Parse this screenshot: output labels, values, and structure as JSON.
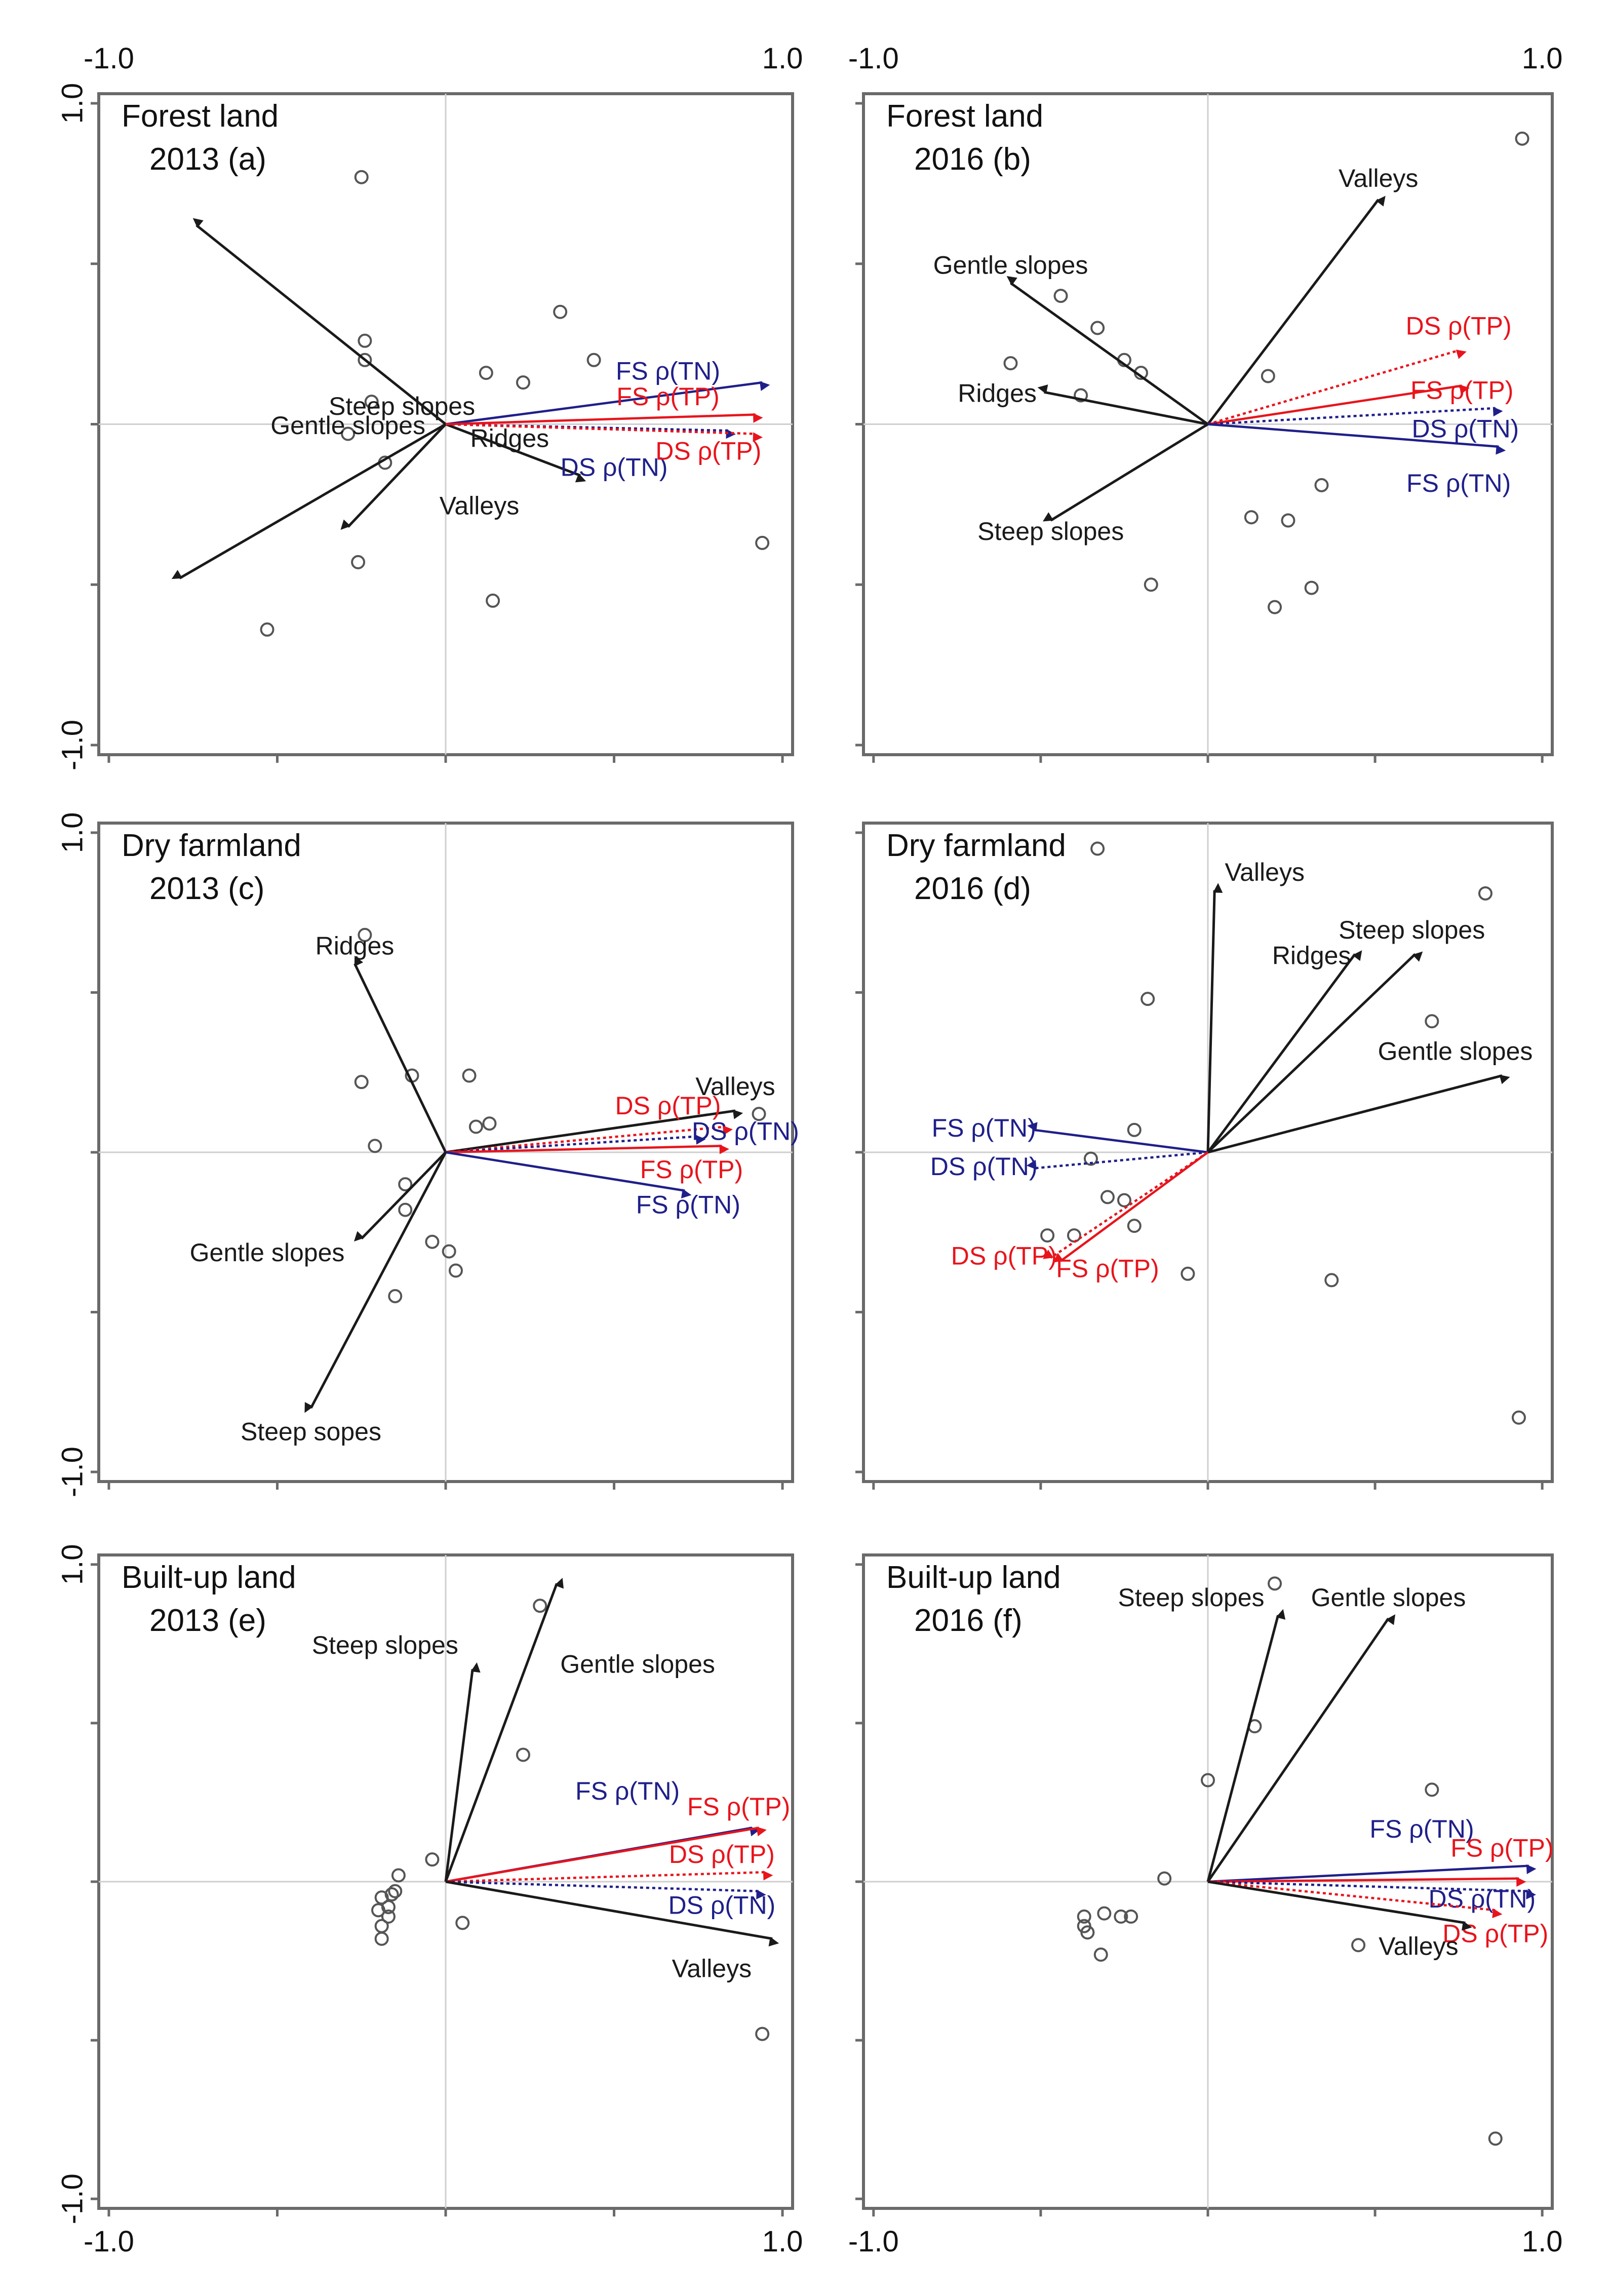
{
  "colors": {
    "env": "#1a1a1a",
    "tn": "#1f1f8a",
    "tp": "#e8141c",
    "point": "#555555"
  },
  "chart_data": [
    {
      "type": "scatter",
      "title": "Forest land",
      "subtitle": "2013 (a)",
      "xlim": [
        -1.0,
        1.0
      ],
      "ylim": [
        -1.0,
        1.0
      ],
      "x_tick_labels": [
        "-1.0",
        "1.0"
      ],
      "y_tick_labels": [
        "1.0",
        "-1.0"
      ],
      "vectors": [
        {
          "label": "Steep slopes",
          "x": -0.74,
          "y": 0.62,
          "kind": "env",
          "style": "solid"
        },
        {
          "label": "Gentle slopes",
          "x": -0.79,
          "y": -0.48,
          "kind": "env",
          "style": "solid"
        },
        {
          "label": "Ridges",
          "x": -0.29,
          "y": -0.32,
          "kind": "env",
          "style": "solid"
        },
        {
          "label": "Valleys",
          "x": 0.4,
          "y": -0.16,
          "kind": "env",
          "style": "solid"
        },
        {
          "label": "FS ρ(TN)",
          "x": 0.94,
          "y": 0.13,
          "kind": "tn",
          "style": "solid"
        },
        {
          "label": "FS ρ(TP)",
          "x": 0.92,
          "y": 0.03,
          "kind": "tp",
          "style": "solid"
        },
        {
          "label": "DS ρ(TN)",
          "x": 0.84,
          "y": -0.02,
          "kind": "tn",
          "style": "dotted"
        },
        {
          "label": "DS ρ(TP)",
          "x": 0.92,
          "y": -0.03,
          "kind": "tp",
          "style": "dotted"
        }
      ],
      "points": [
        [
          -0.25,
          0.77
        ],
        [
          -0.24,
          0.26
        ],
        [
          -0.24,
          0.2
        ],
        [
          -0.22,
          0.07
        ],
        [
          -0.29,
          -0.03
        ],
        [
          -0.18,
          -0.12
        ],
        [
          -0.26,
          -0.43
        ],
        [
          -0.53,
          -0.64
        ],
        [
          0.12,
          0.16
        ],
        [
          0.23,
          0.13
        ],
        [
          0.34,
          0.35
        ],
        [
          0.44,
          0.2
        ],
        [
          0.94,
          -0.37
        ],
        [
          0.14,
          -0.55
        ]
      ],
      "label_offsets": {
        "Steep slopes": [
          -0.13,
          0.05
        ],
        "Gentle slopes": [
          -0.29,
          -0.01
        ],
        "Ridges": [
          0.19,
          -0.05
        ],
        "Valleys": [
          0.1,
          -0.26
        ],
        "FS ρ(TN)": [
          0.66,
          0.16
        ],
        "FS ρ(TP)": [
          0.66,
          0.08
        ],
        "DS ρ(TN)": [
          0.5,
          -0.14
        ],
        "DS ρ(TP)": [
          0.78,
          -0.09
        ]
      }
    },
    {
      "type": "scatter",
      "title": "Forest land",
      "subtitle": "2016 (b)",
      "xlim": [
        -1.0,
        1.0
      ],
      "ylim": [
        -1.0,
        1.0
      ],
      "x_tick_labels": [
        "-1.0",
        "1.0"
      ],
      "y_tick_labels": [],
      "vectors": [
        {
          "label": "Valleys",
          "x": 0.51,
          "y": 0.7,
          "kind": "env",
          "style": "solid"
        },
        {
          "label": "Gentle slopes",
          "x": -0.59,
          "y": 0.44,
          "kind": "env",
          "style": "solid"
        },
        {
          "label": "Ridges",
          "x": -0.49,
          "y": 0.1,
          "kind": "env",
          "style": "solid"
        },
        {
          "label": "Steep slopes",
          "x": -0.47,
          "y": -0.3,
          "kind": "env",
          "style": "solid"
        },
        {
          "label": "DS ρ(TP)",
          "x": 0.75,
          "y": 0.23,
          "kind": "tp",
          "style": "dotted"
        },
        {
          "label": "FS ρ(TP)",
          "x": 0.76,
          "y": 0.12,
          "kind": "tp",
          "style": "solid"
        },
        {
          "label": "DS ρ(TN)",
          "x": 0.86,
          "y": 0.05,
          "kind": "tn",
          "style": "dotted"
        },
        {
          "label": "FS ρ(TN)",
          "x": 0.87,
          "y": -0.07,
          "kind": "tn",
          "style": "solid"
        }
      ],
      "points": [
        [
          0.94,
          0.89
        ],
        [
          -0.44,
          0.4
        ],
        [
          -0.33,
          0.3
        ],
        [
          -0.25,
          0.2
        ],
        [
          -0.2,
          0.16
        ],
        [
          -0.59,
          0.19
        ],
        [
          -0.38,
          0.09
        ],
        [
          0.18,
          0.15
        ],
        [
          0.34,
          -0.19
        ],
        [
          0.13,
          -0.29
        ],
        [
          0.24,
          -0.3
        ],
        [
          -0.17,
          -0.5
        ],
        [
          0.31,
          -0.51
        ],
        [
          0.2,
          -0.57
        ]
      ],
      "label_offsets": {
        "Valleys": [
          0.51,
          0.76
        ],
        "Gentle slopes": [
          -0.59,
          0.49
        ],
        "Ridges": [
          -0.63,
          0.09
        ],
        "Steep slopes": [
          -0.47,
          -0.34
        ],
        "DS ρ(TP)": [
          0.75,
          0.3
        ],
        "FS ρ(TP)": [
          0.76,
          0.1
        ],
        "DS ρ(TN)": [
          0.77,
          -0.02
        ],
        "FS ρ(TN)": [
          0.75,
          -0.19
        ]
      }
    },
    {
      "type": "scatter",
      "title": "Dry farmland",
      "subtitle": "2013 (c)",
      "xlim": [
        -1.0,
        1.0
      ],
      "ylim": [
        -1.0,
        1.0
      ],
      "x_tick_labels": [],
      "y_tick_labels": [
        "1.0",
        "-1.0"
      ],
      "vectors": [
        {
          "label": "Ridges",
          "x": -0.27,
          "y": 0.59,
          "kind": "env",
          "style": "solid"
        },
        {
          "label": "Valleys",
          "x": 0.86,
          "y": 0.13,
          "kind": "env",
          "style": "solid"
        },
        {
          "label": "DS ρ(TP)",
          "x": 0.83,
          "y": 0.08,
          "kind": "tp",
          "style": "dotted"
        },
        {
          "label": "DS ρ(TN)",
          "x": 0.75,
          "y": 0.05,
          "kind": "tn",
          "style": "dotted"
        },
        {
          "label": "FS ρ(TP)",
          "x": 0.82,
          "y": 0.02,
          "kind": "tp",
          "style": "solid"
        },
        {
          "label": "FS ρ(TN)",
          "x": 0.71,
          "y": -0.12,
          "kind": "tn",
          "style": "solid"
        },
        {
          "label": "Gentle slopes",
          "x": -0.25,
          "y": -0.27,
          "kind": "env",
          "style": "solid"
        },
        {
          "label": "Steep sopes",
          "x": -0.4,
          "y": -0.8,
          "kind": "env",
          "style": "solid"
        }
      ],
      "points": [
        [
          -0.24,
          0.68
        ],
        [
          -0.1,
          0.24
        ],
        [
          0.07,
          0.24
        ],
        [
          -0.25,
          0.22
        ],
        [
          0.09,
          0.08
        ],
        [
          0.13,
          0.09
        ],
        [
          -0.21,
          0.02
        ],
        [
          0.93,
          0.12
        ],
        [
          -0.12,
          -0.1
        ],
        [
          -0.12,
          -0.18
        ],
        [
          -0.04,
          -0.28
        ],
        [
          0.01,
          -0.31
        ],
        [
          0.03,
          -0.37
        ],
        [
          -0.15,
          -0.45
        ]
      ],
      "label_offsets": {
        "Ridges": [
          -0.27,
          0.64
        ],
        "Valleys": [
          0.86,
          0.2
        ],
        "DS ρ(TP)": [
          0.66,
          0.14
        ],
        "DS ρ(TN)": [
          0.89,
          0.06
        ],
        "FS ρ(TP)": [
          0.73,
          -0.06
        ],
        "FS ρ(TN)": [
          0.72,
          -0.17
        ],
        "Gentle slopes": [
          -0.53,
          -0.32
        ],
        "Steep sopes": [
          -0.4,
          -0.88
        ]
      }
    },
    {
      "type": "scatter",
      "title": "Dry farmland",
      "subtitle": "2016 (d)",
      "xlim": [
        -1.0,
        1.0
      ],
      "ylim": [
        -1.0,
        1.0
      ],
      "x_tick_labels": [],
      "y_tick_labels": [],
      "vectors": [
        {
          "label": "Valleys",
          "x": 0.02,
          "y": 0.82,
          "kind": "env",
          "style": "solid"
        },
        {
          "label": "Ridges",
          "x": 0.44,
          "y": 0.62,
          "kind": "env",
          "style": "solid"
        },
        {
          "label": "Steep slopes",
          "x": 0.62,
          "y": 0.62,
          "kind": "env",
          "style": "solid"
        },
        {
          "label": "Gentle slopes",
          "x": 0.88,
          "y": 0.24,
          "kind": "env",
          "style": "solid"
        },
        {
          "label": "FS ρ(TN)",
          "x": -0.52,
          "y": 0.07,
          "kind": "tn",
          "style": "solid"
        },
        {
          "label": "DS ρ(TN)",
          "x": -0.52,
          "y": -0.05,
          "kind": "tn",
          "style": "dotted"
        },
        {
          "label": "DS ρ(TP)",
          "x": -0.47,
          "y": -0.33,
          "kind": "tp",
          "style": "dotted"
        },
        {
          "label": "FS ρ(TP)",
          "x": -0.44,
          "y": -0.34,
          "kind": "tp",
          "style": "solid"
        }
      ],
      "points": [
        [
          -0.33,
          0.95
        ],
        [
          0.83,
          0.81
        ],
        [
          -0.18,
          0.48
        ],
        [
          0.67,
          0.41
        ],
        [
          -0.22,
          0.07
        ],
        [
          -0.35,
          -0.02
        ],
        [
          -0.3,
          -0.14
        ],
        [
          -0.25,
          -0.15
        ],
        [
          -0.48,
          -0.26
        ],
        [
          -0.4,
          -0.26
        ],
        [
          -0.22,
          -0.23
        ],
        [
          -0.06,
          -0.38
        ],
        [
          0.37,
          -0.4
        ],
        [
          0.93,
          -0.83
        ]
      ],
      "label_offsets": {
        "Valleys": [
          0.17,
          0.87
        ],
        "Ridges": [
          0.31,
          0.61
        ],
        "Steep slopes": [
          0.61,
          0.69
        ],
        "Gentle slopes": [
          0.74,
          0.31
        ],
        "FS ρ(TN)": [
          -0.67,
          0.07
        ],
        "DS ρ(TN)": [
          -0.67,
          -0.05
        ],
        "DS ρ(TP)": [
          -0.61,
          -0.33
        ],
        "FS ρ(TP)": [
          -0.3,
          -0.37
        ]
      }
    },
    {
      "type": "scatter",
      "title": "Built-up land",
      "subtitle": "2013 (e)",
      "xlim": [
        -1.0,
        1.0
      ],
      "ylim": [
        -1.0,
        1.0
      ],
      "x_tick_labels": [
        "-1.0",
        "1.0"
      ],
      "y_tick_labels": [
        "1.0",
        "-1.0"
      ],
      "vectors": [
        {
          "label": "Gentle slopes",
          "x": 0.33,
          "y": 0.94,
          "kind": "env",
          "style": "solid"
        },
        {
          "label": "Steep slopes",
          "x": 0.08,
          "y": 0.67,
          "kind": "env",
          "style": "solid"
        },
        {
          "label": "FS ρ(TN)",
          "x": 0.91,
          "y": 0.17,
          "kind": "tn",
          "style": "solid"
        },
        {
          "label": "FS ρ(TP)",
          "x": 0.93,
          "y": 0.17,
          "kind": "tp",
          "style": "solid"
        },
        {
          "label": "DS ρ(TP)",
          "x": 0.95,
          "y": 0.03,
          "kind": "tp",
          "style": "dotted"
        },
        {
          "label": "DS ρ(TN)",
          "x": 0.93,
          "y": -0.03,
          "kind": "tn",
          "style": "dotted"
        },
        {
          "label": "Valleys",
          "x": 0.97,
          "y": -0.18,
          "kind": "env",
          "style": "solid"
        }
      ],
      "points": [
        [
          0.28,
          0.87
        ],
        [
          0.23,
          0.4
        ],
        [
          -0.04,
          0.07
        ],
        [
          -0.14,
          0.02
        ],
        [
          -0.15,
          -0.03
        ],
        [
          -0.16,
          -0.04
        ],
        [
          -0.19,
          -0.05
        ],
        [
          -0.17,
          -0.08
        ],
        [
          -0.2,
          -0.09
        ],
        [
          -0.17,
          -0.11
        ],
        [
          -0.19,
          -0.14
        ],
        [
          -0.19,
          -0.18
        ],
        [
          0.05,
          -0.13
        ],
        [
          0.94,
          -0.48
        ]
      ],
      "label_offsets": {
        "Gentle slopes": [
          0.57,
          0.68
        ],
        "Steep slopes": [
          -0.18,
          0.74
        ],
        "FS ρ(TN)": [
          0.54,
          0.28
        ],
        "FS ρ(TP)": [
          0.87,
          0.23
        ],
        "DS ρ(TP)": [
          0.82,
          0.08
        ],
        "DS ρ(TN)": [
          0.82,
          -0.08
        ],
        "Valleys": [
          0.79,
          -0.28
        ]
      }
    },
    {
      "type": "scatter",
      "title": "Built-up land",
      "subtitle": "2016 (f)",
      "xlim": [
        -1.0,
        1.0
      ],
      "ylim": [
        -1.0,
        1.0
      ],
      "x_tick_labels": [
        "-1.0",
        "1.0"
      ],
      "y_tick_labels": [],
      "vectors": [
        {
          "label": "Steep slopes",
          "x": 0.21,
          "y": 0.84,
          "kind": "env",
          "style": "solid"
        },
        {
          "label": "Gentle slopes",
          "x": 0.54,
          "y": 0.83,
          "kind": "env",
          "style": "solid"
        },
        {
          "label": "FS ρ(TN)",
          "x": 0.96,
          "y": 0.05,
          "kind": "tn",
          "style": "solid"
        },
        {
          "label": "FS ρ(TP)",
          "x": 0.93,
          "y": 0.01,
          "kind": "tp",
          "style": "solid"
        },
        {
          "label": "DS ρ(TN)",
          "x": 0.96,
          "y": -0.03,
          "kind": "tn",
          "style": "dotted"
        },
        {
          "label": "DS ρ(TP)",
          "x": 0.86,
          "y": -0.09,
          "kind": "tp",
          "style": "dotted"
        },
        {
          "label": "Valleys",
          "x": 0.77,
          "y": -0.13,
          "kind": "env",
          "style": "solid"
        }
      ],
      "points": [
        [
          0.2,
          0.94
        ],
        [
          0.14,
          0.49
        ],
        [
          0.0,
          0.32
        ],
        [
          0.67,
          0.29
        ],
        [
          -0.13,
          0.01
        ],
        [
          -0.37,
          -0.11
        ],
        [
          -0.31,
          -0.1
        ],
        [
          -0.26,
          -0.11
        ],
        [
          -0.23,
          -0.11
        ],
        [
          -0.37,
          -0.14
        ],
        [
          -0.36,
          -0.16
        ],
        [
          -0.32,
          -0.23
        ],
        [
          0.45,
          -0.2
        ],
        [
          0.86,
          -0.81
        ]
      ],
      "label_offsets": {
        "Steep slopes": [
          -0.05,
          0.89
        ],
        "Gentle slopes": [
          0.54,
          0.89
        ],
        "FS ρ(TN)": [
          0.64,
          0.16
        ],
        "FS ρ(TP)": [
          0.88,
          0.1
        ],
        "DS ρ(TN)": [
          0.82,
          -0.06
        ],
        "DS ρ(TP)": [
          0.86,
          -0.17
        ],
        "Valleys": [
          0.63,
          -0.21
        ]
      }
    }
  ]
}
